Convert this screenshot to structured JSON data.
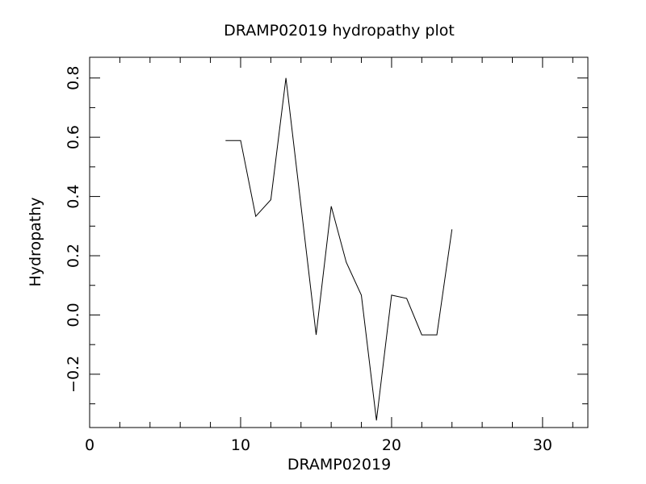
{
  "chart_data": {
    "type": "line",
    "title": "DRAMP02019 hydropathy plot",
    "xlabel": "DRAMP02019",
    "ylabel": "Hydropathy",
    "xlim": [
      0,
      33
    ],
    "ylim": [
      -0.38,
      0.87
    ],
    "x_ticks": [
      {
        "value": 0,
        "label": "0"
      },
      {
        "value": 10,
        "label": "10"
      },
      {
        "value": 20,
        "label": "20"
      },
      {
        "value": 30,
        "label": "30"
      }
    ],
    "x_minor_ticks": [
      2,
      4,
      6,
      8,
      12,
      14,
      16,
      18,
      22,
      24,
      26,
      28,
      32
    ],
    "y_ticks": [
      {
        "value": -0.2,
        "label": "−0.2"
      },
      {
        "value": 0.0,
        "label": "0.0"
      },
      {
        "value": 0.2,
        "label": "0.2"
      },
      {
        "value": 0.4,
        "label": "0.4"
      },
      {
        "value": 0.6,
        "label": "0.6"
      },
      {
        "value": 0.8,
        "label": "0.8"
      }
    ],
    "y_minor_ticks": [
      -0.3,
      -0.1,
      0.1,
      0.3,
      0.5,
      0.7
    ],
    "grid": false,
    "series": [
      {
        "x": [
          9,
          10,
          11,
          12,
          13,
          14,
          15,
          16,
          17,
          18,
          19,
          20,
          21,
          22,
          23,
          24
        ],
        "values": [
          0.589,
          0.589,
          0.333,
          0.389,
          0.8,
          0.367,
          -0.067,
          0.367,
          0.178,
          0.067,
          -0.356,
          0.067,
          0.056,
          -0.067,
          -0.067,
          0.289
        ]
      }
    ]
  }
}
